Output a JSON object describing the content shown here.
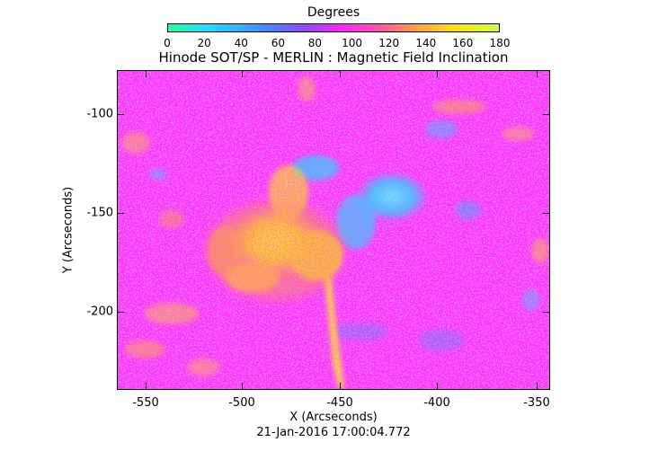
{
  "colorbar": {
    "title": "Degrees",
    "ticks": [
      "0",
      "20",
      "40",
      "60",
      "80",
      "100",
      "120",
      "140",
      "160",
      "180"
    ]
  },
  "plot": {
    "title": "Hinode SOT/SP - MERLIN : Magnetic Field Inclination",
    "xlabel": "X (Arcseconds)",
    "ylabel": "Y (Arcseconds)",
    "xticks": [
      "-550",
      "-500",
      "-450",
      "-400",
      "-350"
    ],
    "yticks": [
      "-100",
      "-150",
      "-200"
    ],
    "timestamp": "21-Jan-2016 17:00:04.772"
  },
  "colors": {
    "background_magenta": "#ff33ff",
    "dark_magenta": "#cc22dd",
    "cyan": "#33ddff",
    "blue": "#5577ff",
    "yellow": "#ffee22",
    "orange": "#ffaa33",
    "pink": "#ff66cc"
  }
}
